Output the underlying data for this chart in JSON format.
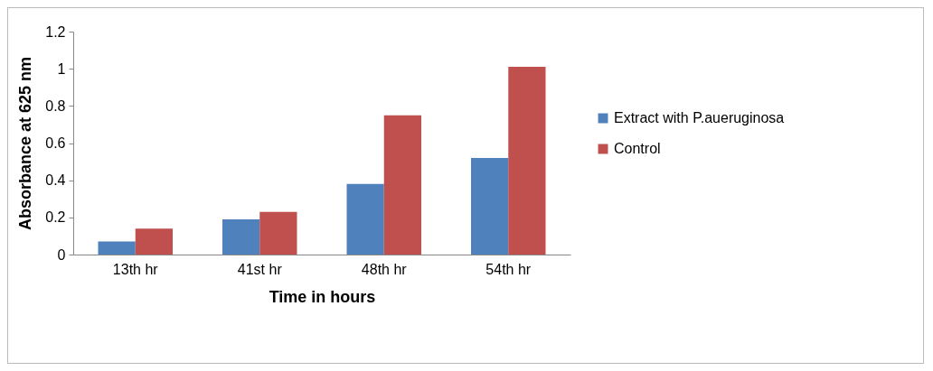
{
  "chart_data": {
    "type": "bar",
    "xlabel": "Time in hours",
    "ylabel": "Absorbance at 625 nm",
    "categories": [
      "13th hr",
      "41st hr",
      "48th hr",
      "54th hr"
    ],
    "series": [
      {
        "name": "Extract with P.aueruginosa",
        "color": "#4f81bd",
        "values": [
          0.07,
          0.19,
          0.38,
          0.52
        ]
      },
      {
        "name": "Control",
        "color": "#c0504d",
        "values": [
          0.14,
          0.23,
          0.75,
          1.01
        ]
      }
    ],
    "ylim": [
      0,
      1.2
    ],
    "yticks": [
      0,
      0.2,
      0.4,
      0.6,
      0.8,
      1,
      1.2
    ],
    "grid": false,
    "legend": "right"
  }
}
